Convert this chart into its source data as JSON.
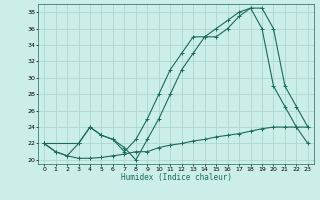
{
  "xlabel": "Humidex (Indice chaleur)",
  "bg_color": "#cceee8",
  "grid_color": "#aad8d0",
  "line_color": "#1a6b5a",
  "xlim": [
    -0.5,
    23.5
  ],
  "ylim": [
    19.5,
    39
  ],
  "xticks": [
    0,
    1,
    2,
    3,
    4,
    5,
    6,
    7,
    8,
    9,
    10,
    11,
    12,
    13,
    14,
    15,
    16,
    17,
    18,
    19,
    20,
    21,
    22,
    23
  ],
  "yticks": [
    20,
    22,
    24,
    26,
    28,
    30,
    32,
    34,
    36,
    38
  ],
  "line1_x": [
    0,
    1,
    2,
    3,
    4,
    5,
    6,
    7,
    8,
    9,
    10,
    11,
    12,
    13,
    14,
    15,
    16,
    17,
    18,
    19,
    20,
    21,
    22,
    23
  ],
  "line1_y": [
    22,
    21,
    20.5,
    20.2,
    20.2,
    20.3,
    20.5,
    20.7,
    21,
    21,
    21.5,
    21.8,
    22,
    22.3,
    22.5,
    22.8,
    23,
    23.2,
    23.5,
    23.8,
    24,
    24,
    24,
    24
  ],
  "line2_x": [
    0,
    1,
    2,
    3,
    4,
    5,
    6,
    7,
    8,
    9,
    10,
    11,
    12,
    13,
    14,
    15,
    16,
    17,
    18,
    19,
    20,
    21,
    22,
    23
  ],
  "line2_y": [
    22,
    21,
    20.5,
    22,
    24,
    23,
    22.5,
    21,
    22.5,
    25,
    28,
    31,
    33,
    35,
    35,
    36,
    37,
    38,
    38.5,
    36,
    29,
    26.5,
    24,
    22
  ],
  "line3_x": [
    0,
    3,
    4,
    5,
    6,
    7,
    8,
    9,
    10,
    11,
    12,
    13,
    14,
    15,
    16,
    17,
    18,
    19,
    20,
    21,
    22,
    23
  ],
  "line3_y": [
    22,
    22,
    24,
    23,
    22.5,
    21.5,
    20,
    22.5,
    25,
    28,
    31,
    33,
    35,
    35,
    36,
    37.5,
    38.5,
    38.5,
    36,
    29,
    26.5,
    24
  ]
}
